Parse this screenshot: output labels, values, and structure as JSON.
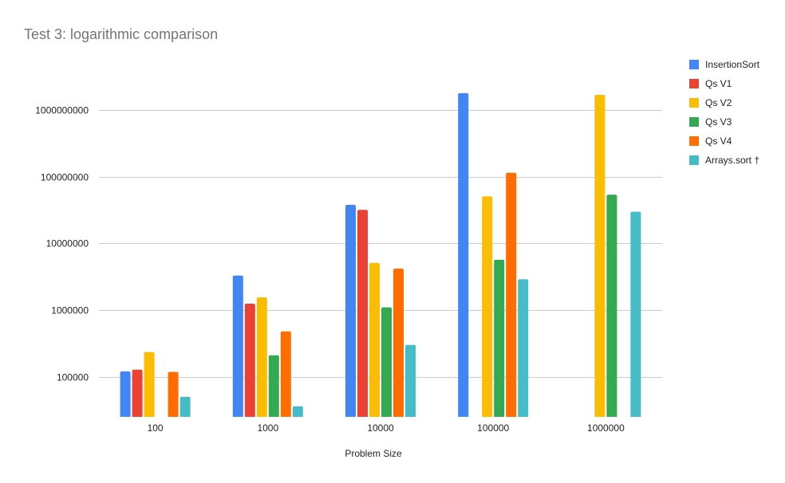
{
  "chart_data": {
    "type": "bar",
    "title": "Test 3: logarithmic comparison",
    "xlabel": "Problem Size",
    "ylabel": "",
    "y_scale": "log",
    "ylim": [
      25000,
      2500000000
    ],
    "y_ticks": [
      100000,
      1000000,
      10000000,
      100000000,
      1000000000
    ],
    "y_tick_labels": [
      "100000",
      "1000000",
      "10000000",
      "100000000",
      "1000000000"
    ],
    "grid": true,
    "legend_position": "right",
    "categories": [
      "100",
      "1000",
      "10000",
      "100000",
      "1000000"
    ],
    "series": [
      {
        "name": "InsertionSort",
        "color": "#4285F4",
        "values": [
          120000,
          3300000,
          38000000,
          1800000000,
          null
        ]
      },
      {
        "name": "Qs V1",
        "color": "#EA4335",
        "values": [
          128000,
          1250000,
          32000000,
          null,
          null
        ]
      },
      {
        "name": "Qs V2",
        "color": "#FBBC04",
        "values": [
          235000,
          1550000,
          5100000,
          51000000,
          1700000000
        ]
      },
      {
        "name": "Qs V3",
        "color": "#34A853",
        "values": [
          null,
          210000,
          1100000,
          5700000,
          54000000
        ]
      },
      {
        "name": "Qs V4",
        "color": "#FF6D01",
        "values": [
          118000,
          480000,
          4200000,
          115000000,
          null
        ]
      },
      {
        "name": "Arrays.sort †",
        "color": "#46BDC6",
        "values": [
          50000,
          36000,
          300000,
          2900000,
          30000000
        ]
      }
    ]
  }
}
